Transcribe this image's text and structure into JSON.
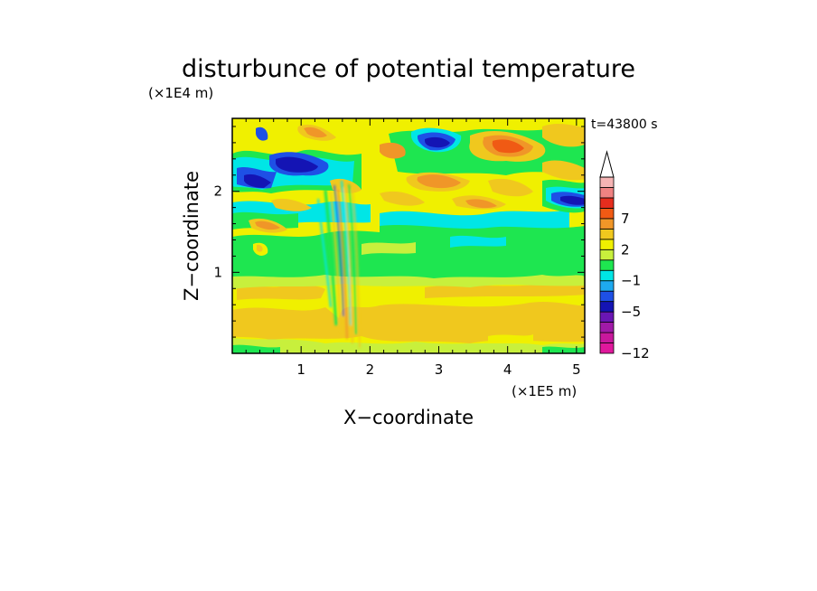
{
  "chart_data": {
    "type": "heatmap",
    "title": "disturbunce of potential temperature",
    "time_label": "t=43800 s",
    "xlabel": "X−coordinate",
    "ylabel": "Z−coordinate",
    "x_scale_label": "(×1E5 m)",
    "y_scale_label": "(×1E4 m)",
    "xlim": [
      0,
      5.12
    ],
    "ylim": [
      0,
      2.9
    ],
    "x_ticks": [
      {
        "value": 1,
        "label": "1"
      },
      {
        "value": 2,
        "label": "2"
      },
      {
        "value": 3,
        "label": "3"
      },
      {
        "value": 4,
        "label": "4"
      },
      {
        "value": 5,
        "label": "5"
      }
    ],
    "y_ticks": [
      {
        "value": 1,
        "label": "1"
      },
      {
        "value": 2,
        "label": "2"
      }
    ],
    "colorbar": {
      "levels": [
        {
          "label": "−12",
          "color": "#e0189c"
        },
        {
          "label": "",
          "color": "#c8189c"
        },
        {
          "label": "",
          "color": "#a01aa8"
        },
        {
          "label": "",
          "color": "#6a16b4"
        },
        {
          "label": "−5",
          "color": "#1414b4"
        },
        {
          "label": "",
          "color": "#1e50e6"
        },
        {
          "label": "",
          "color": "#1eaaf0"
        },
        {
          "label": "−1",
          "color": "#00e6e6"
        },
        {
          "label": "",
          "color": "#1ee650"
        },
        {
          "label": "",
          "color": "#c8f03c"
        },
        {
          "label": "2",
          "color": "#f0f000"
        },
        {
          "label": "",
          "color": "#f0c81e"
        },
        {
          "label": "",
          "color": "#f09628"
        },
        {
          "label": "7",
          "color": "#f05a14"
        },
        {
          "label": "",
          "color": "#e62d1e"
        },
        {
          "label": "",
          "color": "#f08282"
        },
        {
          "label": "",
          "color": "#f5b4b4"
        }
      ],
      "extend_top": true
    },
    "field_levels": [
      {
        "z_range": [
          0.0,
          0.12
        ],
        "level": "2"
      },
      {
        "z_range": [
          0.12,
          0.6
        ],
        "level": "2",
        "note": "orange cells"
      },
      {
        "z_range": [
          0.6,
          0.95
        ],
        "level": "2"
      },
      {
        "z_range": [
          0.95,
          1.6
        ],
        "level": "−1",
        "note": "green band"
      },
      {
        "z_range": [
          1.6,
          1.9
        ],
        "level": "−1",
        "note": "cyan patches"
      },
      {
        "z_range": [
          1.9,
          2.9
        ],
        "level": "mixed",
        "note": "dark blue lobes and orange cells"
      }
    ]
  }
}
